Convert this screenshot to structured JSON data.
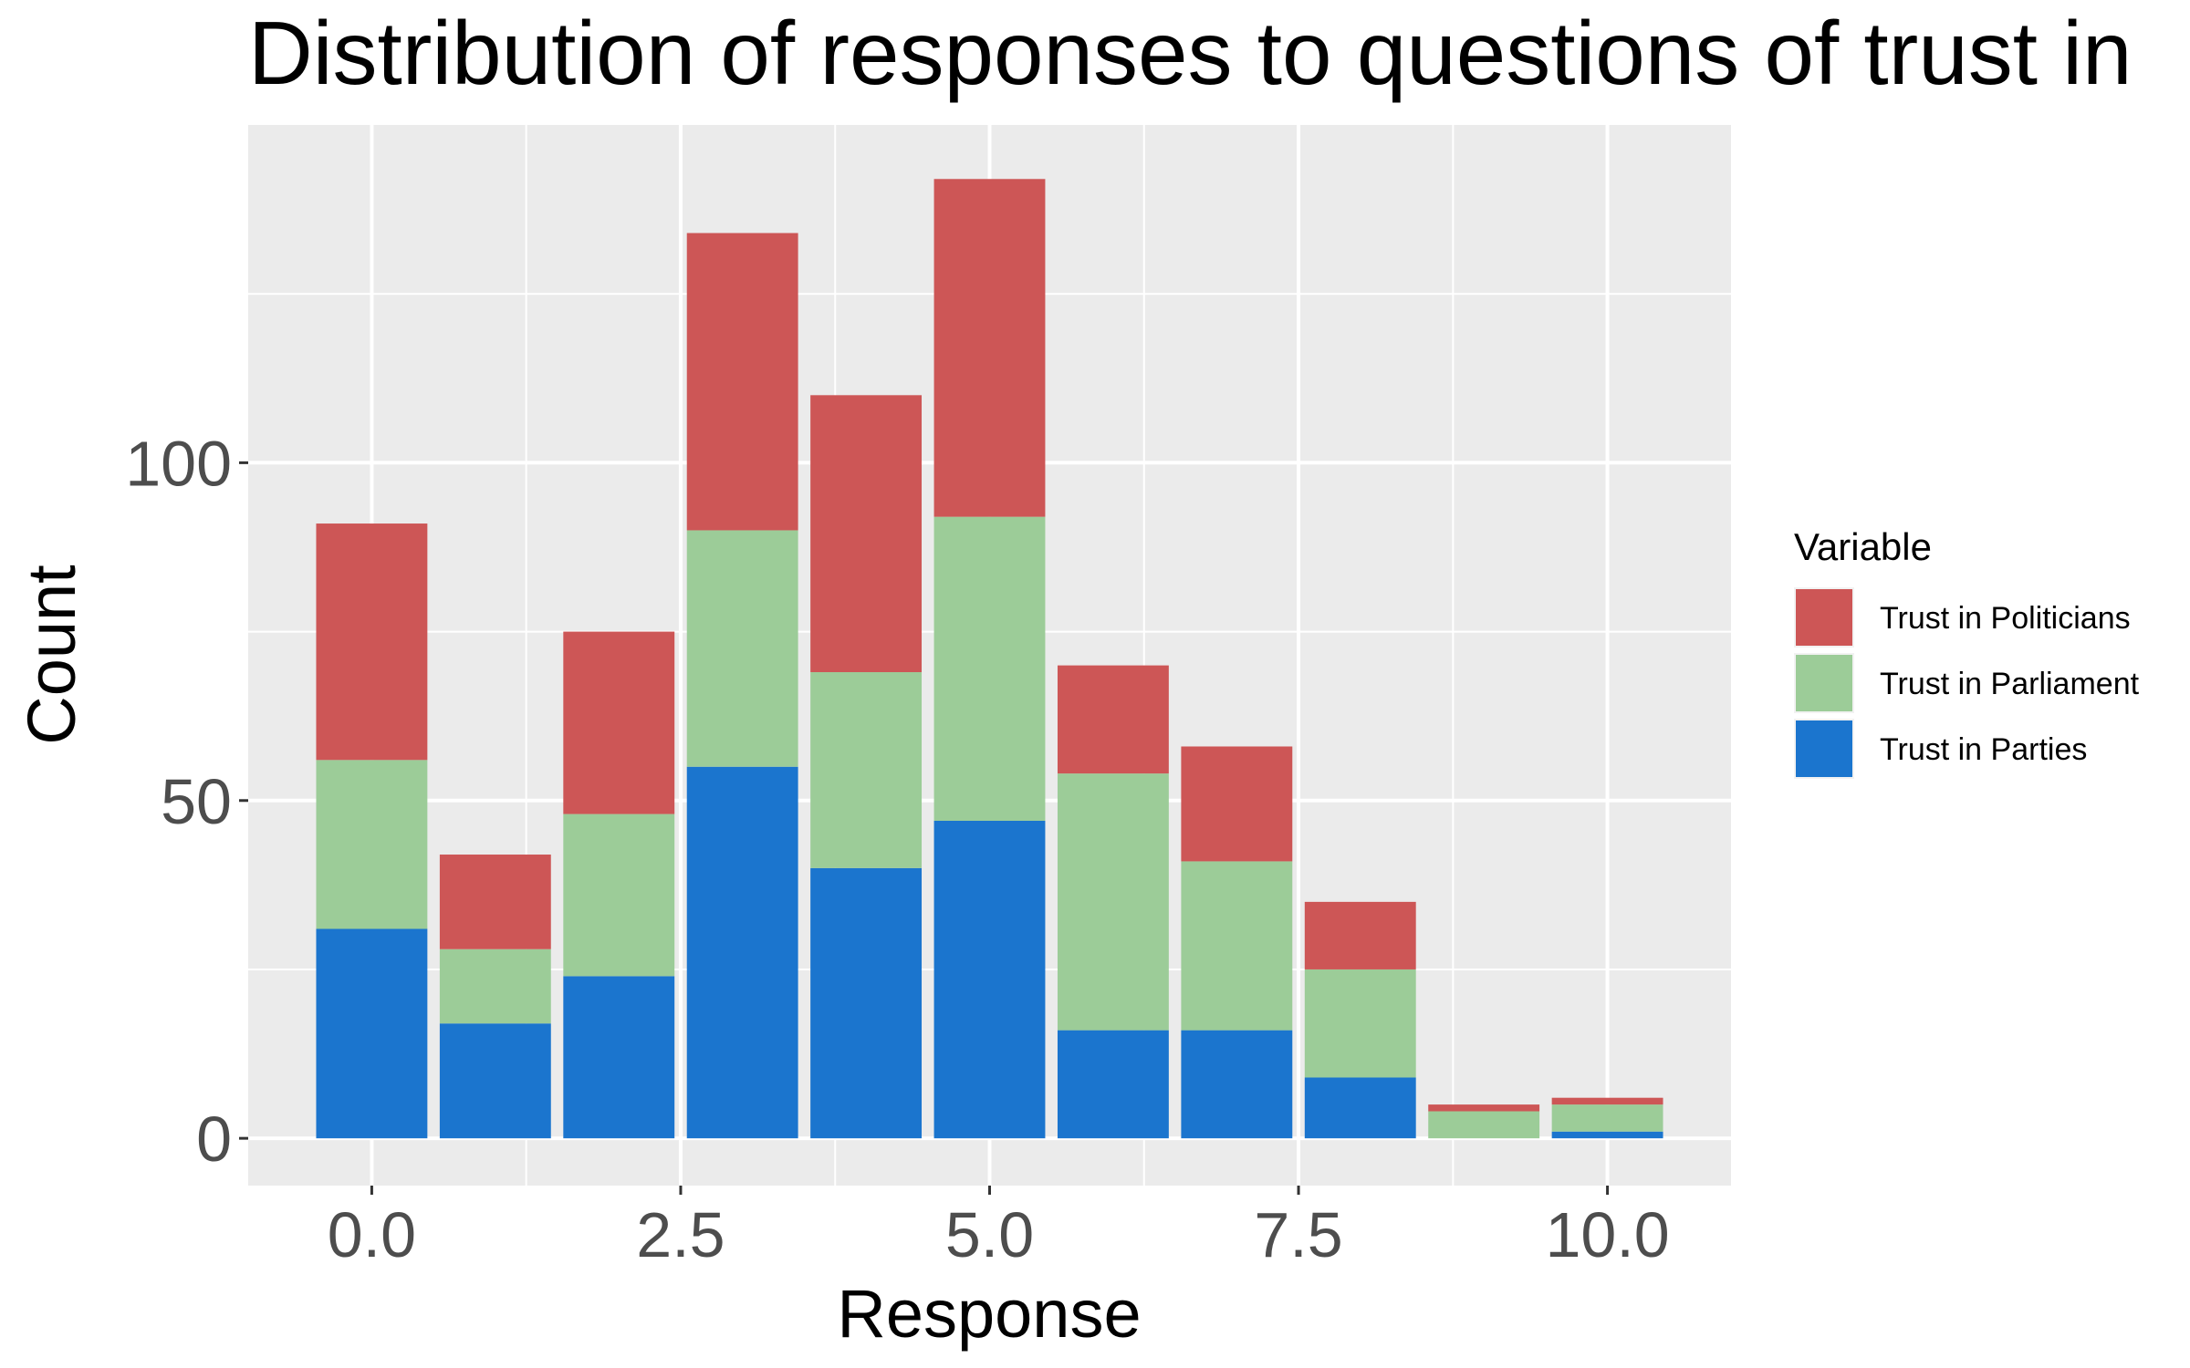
{
  "chart_data": {
    "type": "bar",
    "stacked": true,
    "title": "Distribution of responses to questions of trust in",
    "xlabel": "Response",
    "ylabel": "Count",
    "x": [
      0,
      1,
      2,
      3,
      4,
      5,
      6,
      7,
      8,
      9,
      10
    ],
    "xlim": [
      -1,
      11
    ],
    "ylim": [
      -7,
      150
    ],
    "x_ticks": [
      0,
      2.5,
      5,
      7.5,
      10
    ],
    "x_tick_labels": [
      "0.0",
      "2.5",
      "5.0",
      "7.5",
      "10.0"
    ],
    "y_ticks": [
      0,
      50,
      100
    ],
    "y_tick_labels": [
      "0",
      "50",
      "100"
    ],
    "y_minor_ticks": [
      25,
      75,
      125
    ],
    "grid": true,
    "legend_title": "Variable",
    "legend_position": "right",
    "series": [
      {
        "name": "Trust in Parties",
        "color": "#1b75ce",
        "values": [
          31,
          17,
          24,
          55,
          40,
          47,
          16,
          16,
          9,
          0,
          1
        ]
      },
      {
        "name": "Trust in Parliament",
        "color": "#9ccc98",
        "values": [
          25,
          11,
          24,
          35,
          29,
          45,
          38,
          25,
          16,
          4,
          4
        ]
      },
      {
        "name": "Trust in Politicians",
        "color": "#cd5656",
        "values": [
          35,
          14,
          27,
          44,
          41,
          50,
          16,
          17,
          10,
          1,
          1
        ]
      }
    ],
    "legend_order": [
      "Trust in Politicians",
      "Trust in Parliament",
      "Trust in Parties"
    ]
  }
}
